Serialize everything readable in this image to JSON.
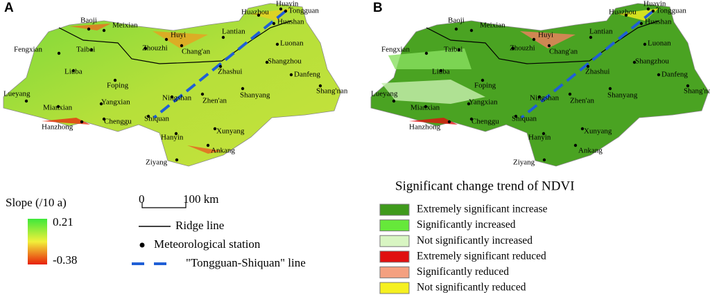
{
  "panel_a": {
    "label": "A",
    "legend": {
      "title": "Slope (/10 a)",
      "max_label": "0.21",
      "min_label": "-0.38",
      "scale_start": "0",
      "scale_end": "100 km",
      "ridge": "Ridge line",
      "station": "Meteorological station",
      "line": "\"Tongguan-Shiquan\" line"
    }
  },
  "panel_b": {
    "label": "B",
    "legend": {
      "title": "Significant change trend of NDVI",
      "items": [
        {
          "name": "Extremely significant increase",
          "color": "#3f9a1c"
        },
        {
          "name": "Significantly increased",
          "color": "#66e83a"
        },
        {
          "name": "Not significantly increased",
          "color": "#d8f5c2"
        },
        {
          "name": "Extremely significant reduced",
          "color": "#e01010"
        },
        {
          "name": "Significantly reduced",
          "color": "#f4a080"
        },
        {
          "name": "Not significantly reduced",
          "color": "#f5f020"
        }
      ]
    }
  },
  "stations": [
    "Baoji",
    "Meixian",
    "Huazhou",
    "Huayin",
    "Tongguan",
    "Huashan",
    "Huyi",
    "Lantian",
    "Fengxian",
    "Taibai",
    "Zhouzhi",
    "Chang'an",
    "Luonan",
    "Zhashui",
    "Shangzhou",
    "Danfeng",
    "Liuba",
    "Foping",
    "Lueyang",
    "Shang'nan",
    "Ningshan",
    "Shanyang",
    "Zhen'an",
    "Mianxian",
    "Yangxian",
    "Chenggu",
    "Hanzhong",
    "Shiquan",
    "Xunyang",
    "Hanyin",
    "Ankang",
    "Ziyang"
  ]
}
